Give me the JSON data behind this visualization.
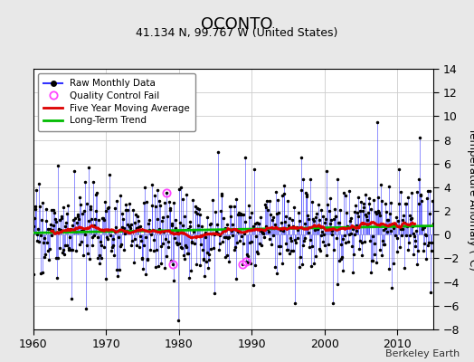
{
  "title": "OCONTO",
  "subtitle": "41.134 N, 99.767 W (United States)",
  "ylabel": "Temperature Anomaly (°C)",
  "attribution": "Berkeley Earth",
  "ylim": [
    -8,
    14
  ],
  "yticks": [
    -8,
    -6,
    -4,
    -2,
    0,
    2,
    4,
    6,
    8,
    10,
    12,
    14
  ],
  "xlim": [
    1960,
    2015
  ],
  "xticks": [
    1960,
    1970,
    1980,
    1990,
    2000,
    2010
  ],
  "start_year": 1960,
  "end_year": 2014,
  "seed": 17,
  "bg_color": "#ffffff",
  "fig_bg_color": "#e8e8e8",
  "line_color": "#3333ff",
  "moving_avg_color": "#dd0000",
  "trend_color": "#00bb00",
  "qc_fail_color": "#ff44ff",
  "dot_color": "#000000",
  "stem_alpha": 0.55,
  "stem_linewidth": 0.7
}
